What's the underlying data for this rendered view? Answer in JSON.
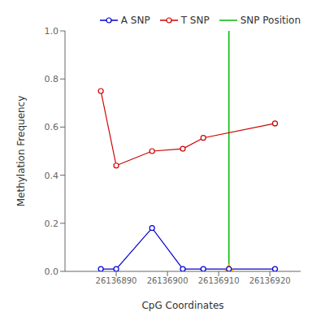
{
  "chart_data": {
    "type": "line",
    "xlabel": "CpG Coordinates",
    "ylabel": "Methylation Frequency",
    "series": [
      {
        "name": "A SNP",
        "color": "#0000CC",
        "marker": "circle",
        "x": [
          26136887,
          26136890,
          26136897,
          26136903,
          26136907,
          26136912,
          26136921
        ],
        "values": [
          0.01,
          0.01,
          0.18,
          0.01,
          0.01,
          0.01,
          0.01
        ]
      },
      {
        "name": "T SNP",
        "color": "#CC0000",
        "marker": "circle",
        "x": [
          26136887,
          26136890,
          26136897,
          26136903,
          26136907,
          26136921
        ],
        "values": [
          0.75,
          0.44,
          0.5,
          0.51,
          0.555,
          0.615
        ]
      }
    ],
    "reference_line": {
      "name": "SNP Position",
      "x": 26136912,
      "color": "#00BB00"
    },
    "point_marker": {
      "x": 26136912,
      "y": 0.01,
      "color": "#FFA500",
      "marker": "triangle"
    },
    "xlim": [
      26136880,
      26136926
    ],
    "xticks": [
      26136890,
      26136900,
      26136910,
      26136920
    ],
    "ylim": [
      0,
      1
    ],
    "yticks": [
      {
        "value": 0,
        "label": "0.0"
      },
      0.2,
      0.4,
      0.6,
      0.8,
      {
        "value": 1,
        "label": "1.0"
      }
    ],
    "grid": false,
    "legend": "upper right"
  }
}
